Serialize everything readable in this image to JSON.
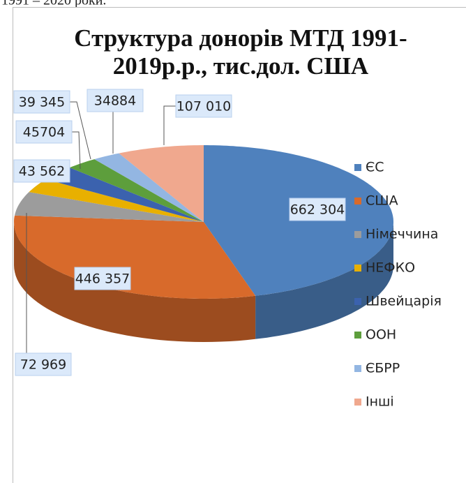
{
  "page_text": "1991 – 2020 роки.",
  "chart_data": {
    "type": "pie3d",
    "title": "Структура донорів МТД 1991-2019р.р., тис.дол. США",
    "categories": [
      "ЄС",
      "США",
      "Німеччина",
      "НЕФКО",
      "Швейцарія",
      "ООН",
      "ЄБРР",
      "Інші"
    ],
    "values": [
      662304,
      446357,
      72969,
      43562,
      45704,
      39345,
      34884,
      107010
    ],
    "value_labels": [
      "662 304",
      "446 357",
      "72 969",
      "43 562",
      "45704",
      "39 345",
      "34884",
      "107 010"
    ],
    "colors": [
      "#4f81bd",
      "#d86a2b",
      "#9c9c9c",
      "#e8b000",
      "#3b62ae",
      "#5d9e3c",
      "#93b6e2",
      "#f0a88e"
    ],
    "legend": "right"
  }
}
